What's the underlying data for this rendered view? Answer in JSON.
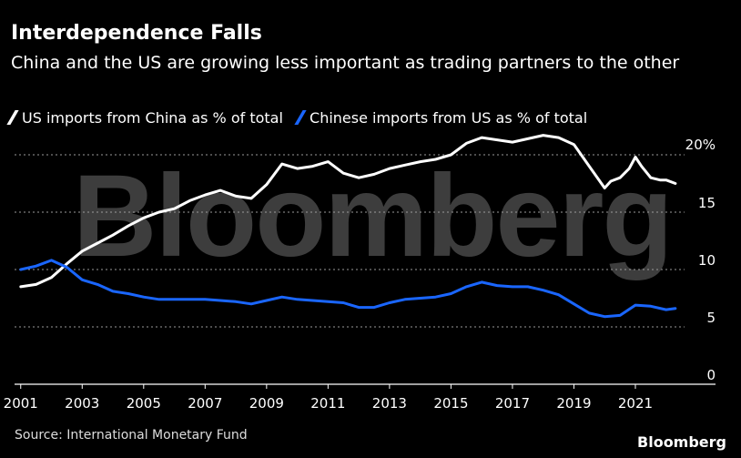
{
  "header": {
    "title": "Interdependence Falls",
    "subtitle": "China and the US are growing less important as trading partners to the other"
  },
  "footer": {
    "source": "Source: International Monetary Fund",
    "brand": "Bloomberg"
  },
  "watermark": "Bloomberg",
  "colors": {
    "us_series": "#ffffff",
    "china_series": "#1a66ff",
    "grid": "#9a9a9a",
    "background": "#000000"
  },
  "chart_data": {
    "type": "line",
    "title": "Interdependence Falls",
    "subtitle": "China and the US are growing less important as trading partners to the other",
    "xlabel": "",
    "ylabel": "",
    "xlim": [
      2000.8,
      2022.6
    ],
    "ylim": [
      0,
      20
    ],
    "x_ticks": [
      2001,
      2003,
      2005,
      2007,
      2009,
      2011,
      2013,
      2015,
      2017,
      2019,
      2021
    ],
    "x_tick_labels": [
      "2001",
      "2003",
      "2005",
      "2007",
      "2009",
      "2011",
      "2013",
      "2015",
      "2017",
      "2019",
      "2021"
    ],
    "y_ticks": [
      0,
      5,
      10,
      15,
      20
    ],
    "y_tick_labels": [
      "0",
      "5",
      "10",
      "15",
      "20%"
    ],
    "grid": "horizontal dotted",
    "legend_position": "top-left",
    "series": [
      {
        "name": "US imports from China as % of total",
        "color": "#ffffff",
        "x": [
          2001,
          2001.5,
          2002,
          2002.5,
          2003,
          2003.5,
          2004,
          2004.5,
          2005,
          2005.5,
          2006,
          2006.5,
          2007,
          2007.5,
          2008,
          2008.5,
          2009,
          2009.5,
          2010,
          2010.5,
          2011,
          2011.5,
          2012,
          2012.5,
          2013,
          2013.5,
          2014,
          2014.5,
          2015,
          2015.5,
          2016,
          2016.5,
          2017,
          2017.5,
          2018,
          2018.5,
          2019,
          2019.5,
          2020,
          2020.2,
          2020.5,
          2020.8,
          2021,
          2021.2,
          2021.5,
          2021.8,
          2022,
          2022.3
        ],
        "values": [
          8.5,
          8.7,
          9.3,
          10.5,
          11.6,
          12.3,
          13.0,
          13.8,
          14.5,
          15.0,
          15.3,
          16.0,
          16.5,
          16.9,
          16.4,
          16.2,
          17.4,
          19.2,
          18.8,
          19.0,
          19.4,
          18.4,
          18.0,
          18.3,
          18.8,
          19.1,
          19.4,
          19.6,
          20.0,
          21.0,
          21.5,
          21.3,
          21.1,
          21.4,
          21.7,
          21.5,
          20.9,
          19.0,
          17.1,
          17.7,
          18.0,
          18.8,
          19.8,
          19.0,
          18.0,
          17.8,
          17.8,
          17.5
        ]
      },
      {
        "name": "Chinese imports from US as % of total",
        "color": "#1a66ff",
        "x": [
          2001,
          2001.5,
          2002,
          2002.5,
          2003,
          2003.5,
          2004,
          2004.5,
          2005,
          2005.5,
          2006,
          2006.5,
          2007,
          2007.5,
          2008,
          2008.5,
          2009,
          2009.5,
          2010,
          2010.5,
          2011,
          2011.5,
          2012,
          2012.5,
          2013,
          2013.5,
          2014,
          2014.5,
          2015,
          2015.5,
          2016,
          2016.5,
          2017,
          2017.5,
          2018,
          2018.5,
          2019,
          2019.5,
          2020,
          2020.5,
          2021,
          2021.5,
          2022,
          2022.3
        ],
        "values": [
          10.0,
          10.3,
          10.8,
          10.2,
          9.1,
          8.7,
          8.1,
          7.9,
          7.6,
          7.4,
          7.4,
          7.4,
          7.4,
          7.3,
          7.2,
          7.0,
          7.3,
          7.6,
          7.4,
          7.3,
          7.2,
          7.1,
          6.7,
          6.7,
          7.1,
          7.4,
          7.5,
          7.6,
          7.9,
          8.5,
          8.9,
          8.6,
          8.5,
          8.5,
          8.2,
          7.8,
          7.0,
          6.2,
          5.9,
          6.0,
          6.9,
          6.8,
          6.5,
          6.6
        ]
      }
    ]
  }
}
